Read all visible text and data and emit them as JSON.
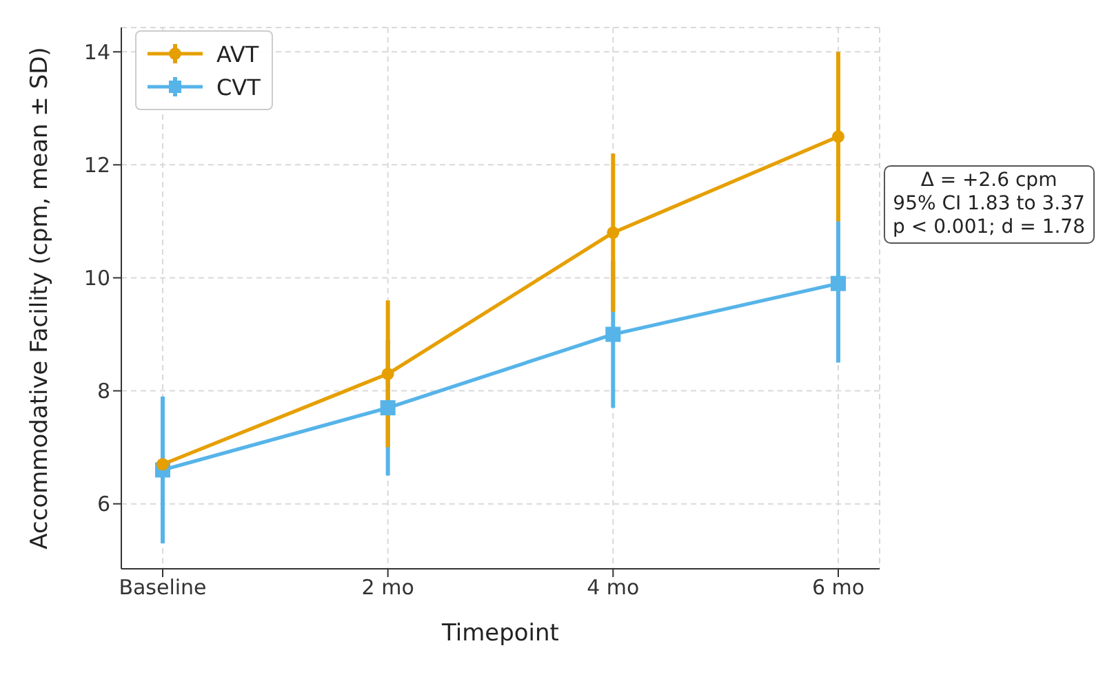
{
  "chart_data": {
    "type": "line",
    "xlabel": "Timepoint",
    "ylabel": "Accommodative Facility (cpm, mean ± SD)",
    "categories": [
      "Baseline",
      "2 mo",
      "4 mo",
      "6 mo"
    ],
    "series": [
      {
        "name": "AVT",
        "color": "#e69f00",
        "marker": "circle",
        "values": [
          6.7,
          8.3,
          10.8,
          12.5
        ],
        "errors": [
          null,
          1.3,
          1.4,
          1.5
        ]
      },
      {
        "name": "CVT",
        "color": "#56b4e9",
        "marker": "square",
        "values": [
          6.6,
          7.7,
          9.0,
          9.9
        ],
        "errors": [
          1.3,
          1.2,
          1.3,
          1.4
        ]
      }
    ],
    "ylim": [
      4.85,
      14.43
    ],
    "yticks": [
      6,
      8,
      10,
      12,
      14
    ],
    "grid": true,
    "legend": "top left",
    "annotations": [
      "Δ = +2.6 cpm\n95% CI 1.83 to 3.37\np < 0.001; d = 1.78"
    ]
  }
}
